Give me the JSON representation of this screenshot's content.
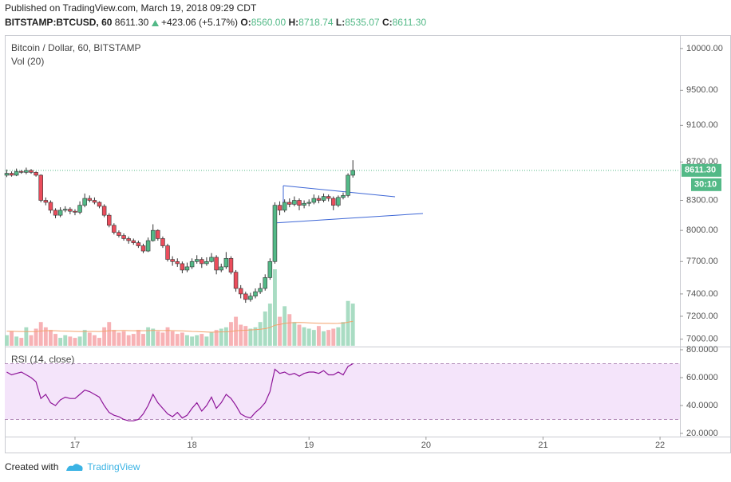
{
  "header": {
    "published": "Published on TradingView.com, March 19, 2018 09:29 CDT",
    "symbol": "BITSTAMP:BTCUSD, 60",
    "price": "8611.30",
    "change": "+423.06 (+5.17%)",
    "ohlc": [
      {
        "key": "O:",
        "value": "8560.00"
      },
      {
        "key": "H:",
        "value": "8718.74"
      },
      {
        "key": "L:",
        "value": "8535.07"
      },
      {
        "key": "C:",
        "value": "8611.30"
      }
    ]
  },
  "footer": {
    "created": "Created with",
    "brand": "TradingView"
  },
  "chart_data": {
    "type": "candlestick",
    "title": "Bitcoin / Dollar, 60, BITSTAMP",
    "log_scale": true,
    "up_color": "#53b987",
    "down_color": "#eb4d5c",
    "x": [
      16.4167,
      16.4583,
      16.5,
      16.5417,
      16.5833,
      16.625,
      16.6667,
      16.7083,
      16.75,
      16.7917,
      16.8333,
      16.875,
      16.9167,
      16.9583,
      17,
      17.0417,
      17.0833,
      17.125,
      17.1667,
      17.2083,
      17.25,
      17.2917,
      17.3333,
      17.375,
      17.4167,
      17.4583,
      17.5,
      17.5417,
      17.5833,
      17.625,
      17.6667,
      17.7083,
      17.75,
      17.7917,
      17.8333,
      17.875,
      17.9167,
      17.9583,
      18,
      18.0417,
      18.0833,
      18.125,
      18.1667,
      18.2083,
      18.25,
      18.2917,
      18.3333,
      18.375,
      18.4167,
      18.4583,
      18.5,
      18.5417,
      18.5833,
      18.625,
      18.6667,
      18.7083,
      18.75,
      18.7917,
      18.8333,
      18.875,
      18.9167,
      18.9583,
      19,
      19.0417,
      19.0833,
      19.125,
      19.1667,
      19.2083,
      19.25,
      19.2917,
      19.3333,
      19.375
    ],
    "open": [
      8560,
      8580,
      8560,
      8600,
      8590,
      8610,
      8590,
      8560,
      8300,
      8280,
      8200,
      8150,
      8200,
      8210,
      8190,
      8180,
      8250,
      8320,
      8300,
      8280,
      8240,
      8150,
      8050,
      7980,
      7950,
      7920,
      7900,
      7880,
      7850,
      7800,
      7900,
      8000,
      7920,
      7850,
      7720,
      7700,
      7680,
      7620,
      7650,
      7700,
      7720,
      7680,
      7700,
      7740,
      7620,
      7650,
      7730,
      7600,
      7450,
      7400,
      7350,
      7380,
      7420,
      7450,
      7550,
      7700,
      8250,
      8200,
      8280,
      8260,
      8300,
      8250,
      8270,
      8280,
      8320,
      8300,
      8340,
      8320,
      8250,
      8330,
      8350,
      8560
    ],
    "high": [
      8620,
      8600,
      8630,
      8615,
      8640,
      8625,
      8600,
      8570,
      8330,
      8300,
      8220,
      8230,
      8240,
      8230,
      8210,
      8290,
      8370,
      8350,
      8330,
      8290,
      8260,
      8170,
      8070,
      8000,
      7970,
      7940,
      7920,
      7900,
      7870,
      7930,
      8060,
      8010,
      7940,
      7870,
      7750,
      7730,
      7700,
      7690,
      7730,
      7760,
      7740,
      7740,
      7780,
      7760,
      7680,
      7790,
      7750,
      7620,
      7480,
      7420,
      7410,
      7450,
      7500,
      7580,
      7730,
      8280,
      8290,
      8310,
      8320,
      8340,
      8320,
      8300,
      8310,
      8360,
      8350,
      8370,
      8360,
      8340,
      8350,
      8380,
      8580,
      8718.74
    ],
    "low": [
      8540,
      8545,
      8550,
      8575,
      8570,
      8575,
      8545,
      8280,
      8250,
      8170,
      8120,
      8130,
      8180,
      8160,
      8150,
      8160,
      8230,
      8280,
      8260,
      8220,
      8130,
      8030,
      7960,
      7930,
      7900,
      7870,
      7860,
      7830,
      7780,
      7790,
      7890,
      7900,
      7830,
      7700,
      7660,
      7650,
      7590,
      7600,
      7630,
      7680,
      7640,
      7660,
      7690,
      7580,
      7600,
      7630,
      7580,
      7420,
      7360,
      7320,
      7330,
      7360,
      7400,
      7430,
      7530,
      7680,
      8150,
      8180,
      8230,
      8240,
      8200,
      8220,
      8240,
      8260,
      8270,
      8280,
      8290,
      8200,
      8230,
      8310,
      8330,
      8535.07
    ],
    "close": [
      8580,
      8560,
      8600,
      8590,
      8610,
      8590,
      8560,
      8300,
      8280,
      8200,
      8150,
      8200,
      8210,
      8190,
      8180,
      8250,
      8320,
      8300,
      8280,
      8240,
      8150,
      8050,
      7980,
      7950,
      7920,
      7900,
      7880,
      7850,
      7800,
      7900,
      8000,
      7920,
      7850,
      7720,
      7700,
      7680,
      7620,
      7650,
      7700,
      7720,
      7680,
      7700,
      7740,
      7620,
      7650,
      7730,
      7600,
      7450,
      7400,
      7350,
      7380,
      7420,
      7450,
      7550,
      7700,
      8250,
      8200,
      8280,
      8260,
      8300,
      8250,
      8270,
      8280,
      8320,
      8300,
      8340,
      8320,
      8250,
      8330,
      8350,
      8560,
      8611.3
    ],
    "last_price": {
      "value": 8611.3,
      "label": "8611.30"
    },
    "countdown": "30:10",
    "xlim": [
      16.4,
      22.17
    ],
    "xticks": [
      17,
      18,
      19,
      20,
      21,
      22
    ],
    "ylim": [
      6944,
      10166
    ],
    "yticks": [
      {
        "value": 7000,
        "label": "7000.00"
      },
      {
        "value": 7200,
        "label": "7200.00"
      },
      {
        "value": 7400,
        "label": "7400.00"
      },
      {
        "value": 7700,
        "label": "7700.00"
      },
      {
        "value": 8000,
        "label": "8000.00"
      },
      {
        "value": 8300,
        "label": "8300.00"
      },
      {
        "value": 8700,
        "label": "8700.00"
      },
      {
        "value": 9100,
        "label": "9100.00"
      },
      {
        "value": 9500,
        "label": "9500.00"
      },
      {
        "value": 10000,
        "label": "10000.00"
      }
    ],
    "volume": {
      "label": "Vol (20)",
      "up_color": "#a9dcc3",
      "down_color": "#f7b2b5",
      "ma_color": "#f2a16b",
      "values": [
        400,
        550,
        350,
        300,
        700,
        400,
        650,
        900,
        700,
        600,
        450,
        300,
        400,
        350,
        300,
        350,
        600,
        500,
        400,
        300,
        700,
        900,
        600,
        500,
        550,
        400,
        450,
        600,
        450,
        700,
        650,
        550,
        500,
        700,
        550,
        450,
        500,
        400,
        350,
        400,
        450,
        350,
        500,
        600,
        650,
        700,
        900,
        1100,
        800,
        750,
        650,
        700,
        900,
        1300,
        1600,
        2900,
        1100,
        1500,
        1200,
        900,
        800,
        700,
        650,
        600,
        750,
        550,
        600,
        650,
        700,
        900,
        1700,
        1600
      ],
      "ma": [
        550,
        550,
        545,
        540,
        540,
        535,
        540,
        560,
        570,
        575,
        570,
        560,
        555,
        550,
        545,
        540,
        540,
        545,
        545,
        540,
        550,
        570,
        575,
        575,
        580,
        575,
        570,
        575,
        570,
        575,
        580,
        580,
        575,
        580,
        575,
        570,
        565,
        555,
        545,
        540,
        530,
        520,
        515,
        520,
        525,
        530,
        545,
        570,
        580,
        590,
        600,
        610,
        625,
        650,
        690,
        780,
        810,
        850,
        870,
        880,
        885,
        880,
        870,
        860,
        855,
        850,
        850,
        845,
        850,
        860,
        895,
        930
      ]
    },
    "rsi": {
      "label": "RSI (14, close)",
      "color": "#8e1599",
      "band_color": "#f4e4fa",
      "bands": [
        30,
        70
      ],
      "ylim": [
        17.7,
        81.7
      ],
      "yticks": [
        {
          "value": 20,
          "label": "20.0000"
        },
        {
          "value": 40,
          "label": "40.0000"
        },
        {
          "value": 60,
          "label": "60.0000"
        },
        {
          "value": 80,
          "label": "80.0000"
        }
      ],
      "values": [
        64,
        62,
        63,
        64,
        62,
        60,
        57,
        45,
        48,
        42,
        40,
        44,
        46,
        45,
        45,
        48,
        51,
        50,
        48,
        46,
        40,
        35,
        33,
        32,
        30,
        29,
        29,
        30,
        34,
        40,
        48,
        42,
        38,
        34,
        32,
        35,
        31,
        33,
        38,
        42,
        36,
        40,
        46,
        38,
        42,
        48,
        45,
        40,
        34,
        32,
        31,
        35,
        38,
        42,
        50,
        66,
        63,
        64,
        62,
        63,
        61,
        63,
        64,
        64,
        63,
        65,
        62,
        62,
        64,
        62,
        68,
        70
      ]
    }
  }
}
